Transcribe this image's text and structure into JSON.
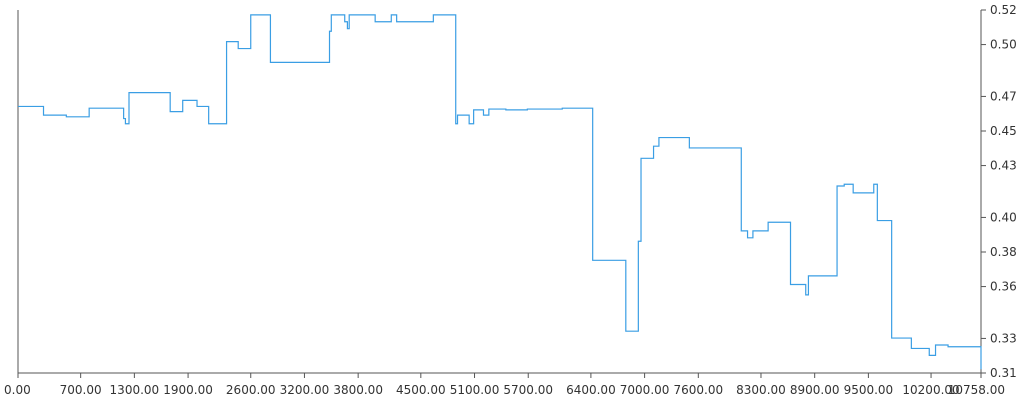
{
  "chart_data": {
    "type": "line",
    "step": true,
    "title": "",
    "xlabel": "",
    "ylabel": "",
    "xlim": [
      0,
      10758
    ],
    "ylim": [
      0.31,
      0.52
    ],
    "y_axis_side": "right",
    "grid": false,
    "legend": "none",
    "colors": {
      "line": "#3a9ee4",
      "axis": "#555555",
      "text": "#333333"
    },
    "x_ticks": [
      {
        "value": 0,
        "label": "0.00"
      },
      {
        "value": 700,
        "label": "700.00"
      },
      {
        "value": 1300,
        "label": "1300.00"
      },
      {
        "value": 1900,
        "label": "1900.00"
      },
      {
        "value": 2600,
        "label": "2600.00"
      },
      {
        "value": 3200,
        "label": "3200.00"
      },
      {
        "value": 3800,
        "label": "3800.00"
      },
      {
        "value": 4500,
        "label": "4500.00"
      },
      {
        "value": 5100,
        "label": "5100.00"
      },
      {
        "value": 5700,
        "label": "5700.00"
      },
      {
        "value": 6400,
        "label": "6400.00"
      },
      {
        "value": 7000,
        "label": "7000.00"
      },
      {
        "value": 7600,
        "label": "7600.00"
      },
      {
        "value": 8300,
        "label": "8300.00"
      },
      {
        "value": 8900,
        "label": "8900.00"
      },
      {
        "value": 9500,
        "label": "9500.00"
      },
      {
        "value": 10200,
        "label": "10200.00"
      },
      {
        "value": 10758,
        "label": "10758.00"
      }
    ],
    "y_ticks": [
      {
        "value": 0.31,
        "label": "0.31"
      },
      {
        "value": 0.33,
        "label": "0.33"
      },
      {
        "value": 0.36,
        "label": "0.36"
      },
      {
        "value": 0.38,
        "label": "0.38"
      },
      {
        "value": 0.4,
        "label": "0.40"
      },
      {
        "value": 0.43,
        "label": "0.43"
      },
      {
        "value": 0.45,
        "label": "0.45"
      },
      {
        "value": 0.47,
        "label": "0.47"
      },
      {
        "value": 0.5,
        "label": "0.50"
      },
      {
        "value": 0.52,
        "label": "0.52"
      }
    ],
    "series": [
      {
        "x": [
          0,
          285,
          540,
          795,
          1180,
          1200,
          1240,
          1700,
          1840,
          2000,
          2130,
          2330,
          2460,
          2600,
          2820,
          3480,
          3500,
          3650,
          3680,
          3700,
          3990,
          4170,
          4230,
          4640,
          4890,
          4910,
          5040,
          5090,
          5200,
          5260,
          5450,
          5690,
          6080,
          6420,
          6790,
          6930,
          6960,
          7100,
          7160,
          7240,
          7500,
          8080,
          8150,
          8210,
          8380,
          8630,
          8760,
          8800,
          8830,
          9150,
          9230,
          9330,
          9560,
          9600,
          9760,
          9980,
          10180,
          10250,
          10390,
          10758
        ],
        "y": [
          0.4642,
          0.4592,
          0.4582,
          0.4632,
          0.4572,
          0.4542,
          0.4722,
          0.4612,
          0.4677,
          0.4642,
          0.4542,
          0.5017,
          0.4977,
          0.5172,
          0.4897,
          0.5077,
          0.5172,
          0.5132,
          0.5092,
          0.5172,
          0.5132,
          0.5172,
          0.5132,
          0.5172,
          0.4542,
          0.4592,
          0.4542,
          0.4622,
          0.4592,
          0.4627,
          0.4622,
          0.4627,
          0.4632,
          0.3752,
          0.3342,
          0.3862,
          0.4342,
          0.4412,
          0.4462,
          0.4462,
          0.4402,
          0.3922,
          0.3882,
          0.3922,
          0.3972,
          0.3612,
          0.3612,
          0.3552,
          0.3662,
          0.4182,
          0.4192,
          0.4142,
          0.4192,
          0.3982,
          0.3302,
          0.3242,
          0.3202,
          0.3262,
          0.3252,
          0.3122
        ]
      }
    ]
  }
}
